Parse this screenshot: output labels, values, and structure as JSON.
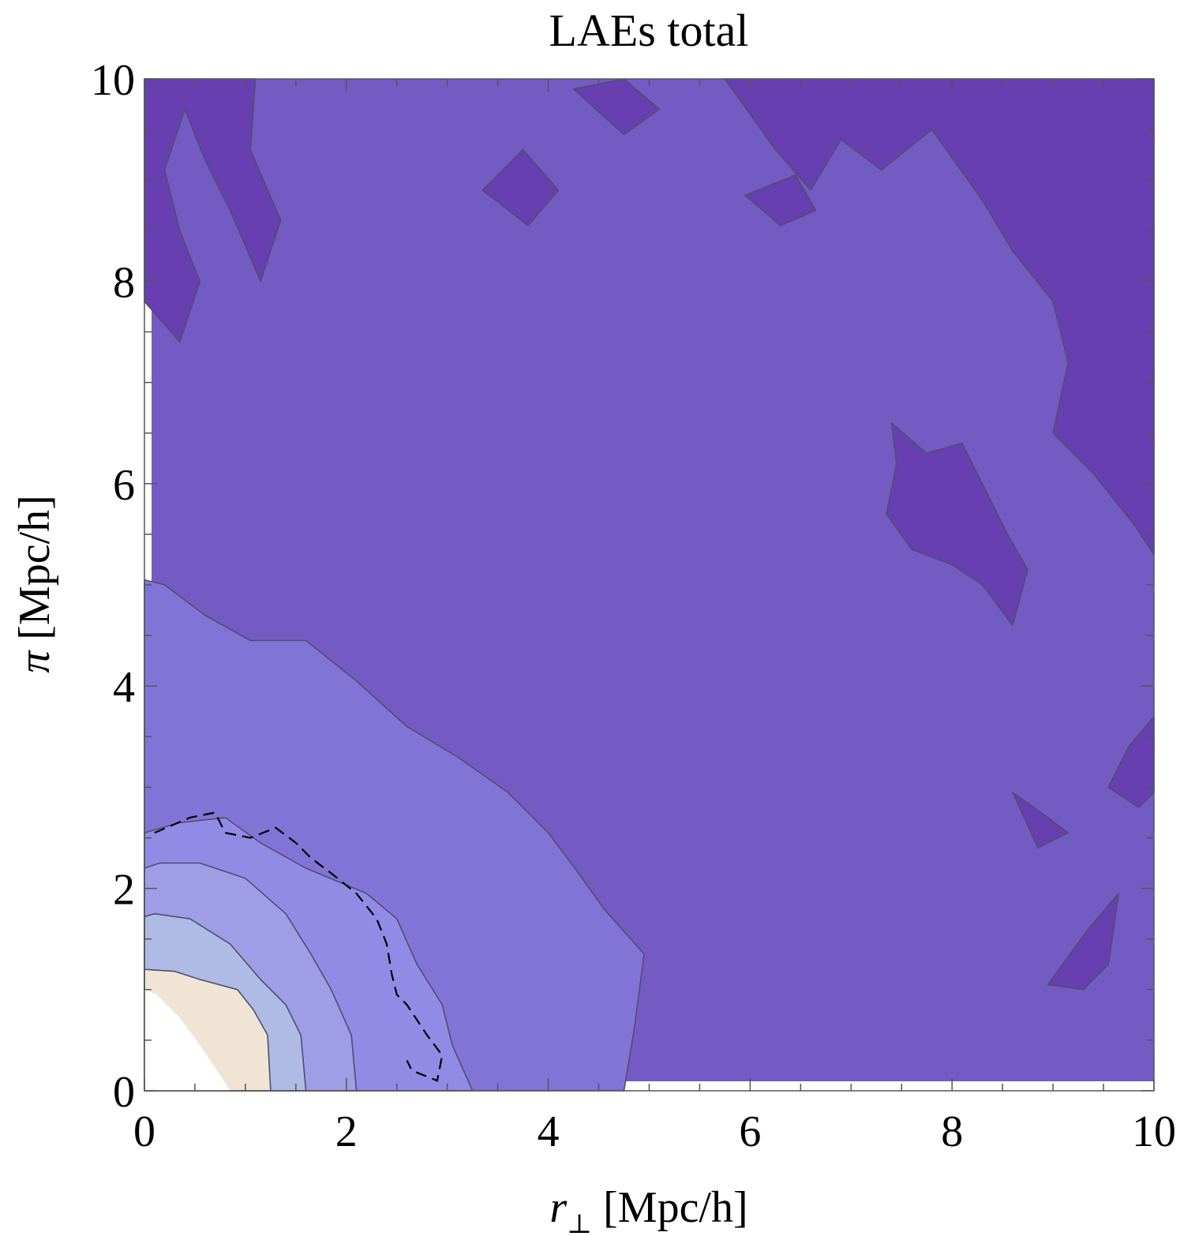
{
  "chart_data": {
    "type": "contour",
    "title": "LAEs total",
    "xlabel_symbol": "r",
    "xlabel_subscript": "⊥",
    "xlabel_unit": " [Mpc/h]",
    "ylabel_symbol": "π",
    "ylabel_unit": " [Mpc/h]",
    "xlim": [
      0,
      10
    ],
    "ylim": [
      0,
      10
    ],
    "x_ticks": [
      "0",
      "2",
      "4",
      "6",
      "8",
      "10"
    ],
    "y_ticks": [
      "0",
      "2",
      "4",
      "6",
      "8",
      "10"
    ],
    "grid": false,
    "colors": {
      "band_darkest": "#673fb0",
      "band_dark": "#745bc3",
      "band_mid": "#8274d6",
      "band_light": "#918be5",
      "band_lighter": "#9f9de6",
      "band_pale": "#afbbe5",
      "band_beige": "#f0e5d5",
      "band_core": "#ffffff",
      "contour_line": "#4f4f70"
    },
    "contour_regions": [
      {
        "level": "core",
        "boundary": [
          [
            0,
            0
          ],
          [
            0.85,
            0
          ],
          [
            0.75,
            0.15
          ],
          [
            0.55,
            0.45
          ],
          [
            0.35,
            0.72
          ],
          [
            0.12,
            0.95
          ],
          [
            0,
            1.0
          ]
        ]
      },
      {
        "level": "beige",
        "boundary": [
          [
            0,
            0
          ],
          [
            1.25,
            0
          ],
          [
            1.22,
            0.55
          ],
          [
            1.08,
            0.8
          ],
          [
            0.92,
            1.0
          ],
          [
            0.55,
            1.1
          ],
          [
            0.3,
            1.18
          ],
          [
            0,
            1.2
          ]
        ]
      },
      {
        "level": "pale",
        "boundary": [
          [
            0,
            0
          ],
          [
            1.6,
            0
          ],
          [
            1.55,
            0.55
          ],
          [
            1.4,
            0.85
          ],
          [
            1.15,
            1.1
          ],
          [
            0.85,
            1.45
          ],
          [
            0.45,
            1.7
          ],
          [
            0.1,
            1.75
          ],
          [
            0,
            1.72
          ]
        ]
      },
      {
        "level": "lighter",
        "boundary": [
          [
            0,
            0
          ],
          [
            2.1,
            0
          ],
          [
            2.05,
            0.55
          ],
          [
            1.85,
            1.0
          ],
          [
            1.65,
            1.35
          ],
          [
            1.4,
            1.75
          ],
          [
            1.0,
            2.1
          ],
          [
            0.55,
            2.25
          ],
          [
            0.15,
            2.25
          ],
          [
            0,
            2.2
          ]
        ]
      },
      {
        "level": "light",
        "boundary": [
          [
            0,
            0
          ],
          [
            3.25,
            0
          ],
          [
            3.05,
            0.45
          ],
          [
            2.95,
            0.85
          ],
          [
            2.7,
            1.25
          ],
          [
            2.5,
            1.7
          ],
          [
            2.2,
            1.95
          ],
          [
            1.6,
            2.2
          ],
          [
            1.15,
            2.45
          ],
          [
            0.8,
            2.7
          ],
          [
            0.35,
            2.65
          ],
          [
            0,
            2.55
          ]
        ]
      },
      {
        "level": "mid",
        "boundary": [
          [
            0,
            0
          ],
          [
            4.75,
            0
          ],
          [
            4.85,
            0.6
          ],
          [
            4.95,
            1.35
          ],
          [
            4.55,
            1.8
          ],
          [
            4.3,
            2.15
          ],
          [
            4.0,
            2.55
          ],
          [
            3.6,
            2.95
          ],
          [
            3.1,
            3.3
          ],
          [
            2.6,
            3.6
          ],
          [
            2.1,
            4.05
          ],
          [
            1.6,
            4.45
          ],
          [
            1.05,
            4.45
          ],
          [
            0.6,
            4.7
          ],
          [
            0.2,
            5.0
          ],
          [
            0,
            5.05
          ]
        ]
      },
      {
        "level": "darkest",
        "boundary": [
          [
            0,
            7.8
          ],
          [
            0.35,
            7.4
          ],
          [
            0.55,
            8.0
          ],
          [
            0.35,
            8.5
          ],
          [
            0.2,
            9.1
          ],
          [
            0.4,
            9.7
          ],
          [
            0.6,
            9.2
          ],
          [
            0.85,
            8.7
          ],
          [
            1.15,
            8.0
          ],
          [
            1.35,
            8.6
          ],
          [
            1.05,
            9.3
          ],
          [
            1.1,
            10.0
          ],
          [
            0,
            10.0
          ]
        ]
      },
      {
        "level": "darkest",
        "boundary": [
          [
            5.75,
            10.0
          ],
          [
            6.25,
            9.3
          ],
          [
            6.6,
            8.9
          ],
          [
            6.9,
            9.4
          ],
          [
            7.3,
            9.1
          ],
          [
            7.8,
            9.5
          ],
          [
            8.3,
            8.8
          ],
          [
            8.6,
            8.3
          ],
          [
            9.0,
            7.8
          ],
          [
            9.15,
            7.2
          ],
          [
            9.0,
            6.5
          ],
          [
            9.4,
            6.1
          ],
          [
            9.8,
            5.6
          ],
          [
            10.0,
            5.3
          ],
          [
            10.0,
            10.0
          ]
        ]
      },
      {
        "level": "darkest",
        "boundary": [
          [
            7.4,
            6.6
          ],
          [
            7.75,
            6.3
          ],
          [
            8.1,
            6.4
          ],
          [
            8.35,
            5.9
          ],
          [
            8.55,
            5.5
          ],
          [
            8.75,
            5.15
          ],
          [
            8.6,
            4.6
          ],
          [
            8.3,
            5.0
          ],
          [
            8.0,
            5.2
          ],
          [
            7.6,
            5.35
          ],
          [
            7.35,
            5.7
          ],
          [
            7.45,
            6.2
          ]
        ]
      },
      {
        "level": "darkest",
        "boundary": [
          [
            5.95,
            8.85
          ],
          [
            6.3,
            8.55
          ],
          [
            6.65,
            8.7
          ],
          [
            6.45,
            9.05
          ]
        ]
      },
      {
        "level": "darkest",
        "boundary": [
          [
            3.35,
            8.9
          ],
          [
            3.8,
            8.55
          ],
          [
            4.1,
            8.9
          ],
          [
            3.75,
            9.3
          ]
        ]
      },
      {
        "level": "darkest",
        "boundary": [
          [
            9.55,
            3.0
          ],
          [
            9.85,
            2.8
          ],
          [
            10.0,
            2.95
          ],
          [
            10.0,
            3.7
          ],
          [
            9.75,
            3.4
          ]
        ]
      },
      {
        "level": "darkest",
        "boundary": [
          [
            8.6,
            2.95
          ],
          [
            8.95,
            2.7
          ],
          [
            9.15,
            2.55
          ],
          [
            8.85,
            2.4
          ]
        ]
      },
      {
        "level": "darkest",
        "boundary": [
          [
            8.95,
            1.05
          ],
          [
            9.3,
            1.0
          ],
          [
            9.55,
            1.25
          ],
          [
            9.65,
            1.95
          ],
          [
            9.35,
            1.6
          ]
        ]
      },
      {
        "level": "darkest",
        "boundary": [
          [
            4.25,
            9.9
          ],
          [
            4.75,
            9.45
          ],
          [
            5.1,
            9.7
          ],
          [
            4.75,
            10.0
          ]
        ]
      }
    ],
    "dashed_contour": {
      "style": "dashed",
      "color": "#000000",
      "points": [
        [
          0.1,
          2.55
        ],
        [
          0.45,
          2.7
        ],
        [
          0.7,
          2.75
        ],
        [
          0.8,
          2.55
        ],
        [
          1.05,
          2.5
        ],
        [
          1.3,
          2.6
        ],
        [
          1.5,
          2.45
        ],
        [
          1.65,
          2.3
        ],
        [
          1.85,
          2.15
        ],
        [
          2.1,
          1.95
        ],
        [
          2.3,
          1.7
        ],
        [
          2.4,
          1.45
        ],
        [
          2.45,
          1.15
        ],
        [
          2.5,
          0.95
        ],
        [
          2.6,
          0.85
        ],
        [
          2.8,
          0.55
        ],
        [
          2.95,
          0.35
        ],
        [
          2.9,
          0.1
        ],
        [
          2.65,
          0.2
        ],
        [
          2.6,
          0.3
        ]
      ]
    }
  }
}
